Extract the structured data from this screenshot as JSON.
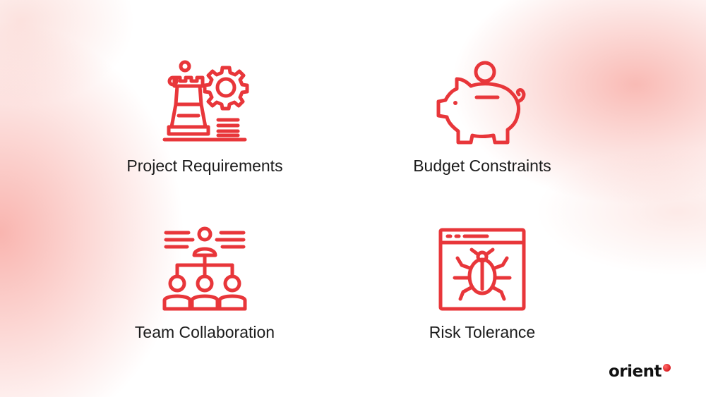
{
  "items": [
    {
      "label": "Project Requirements",
      "icon": "strategy-gear-icon"
    },
    {
      "label": "Budget Constraints",
      "icon": "piggy-bank-icon"
    },
    {
      "label": "Team Collaboration",
      "icon": "team-hierarchy-icon"
    },
    {
      "label": "Risk Tolerance",
      "icon": "bug-window-icon"
    }
  ],
  "brand": {
    "name": "orient"
  },
  "colors": {
    "accent": "#e8363a",
    "text": "#1b1b1b",
    "background": "#ffffff"
  }
}
